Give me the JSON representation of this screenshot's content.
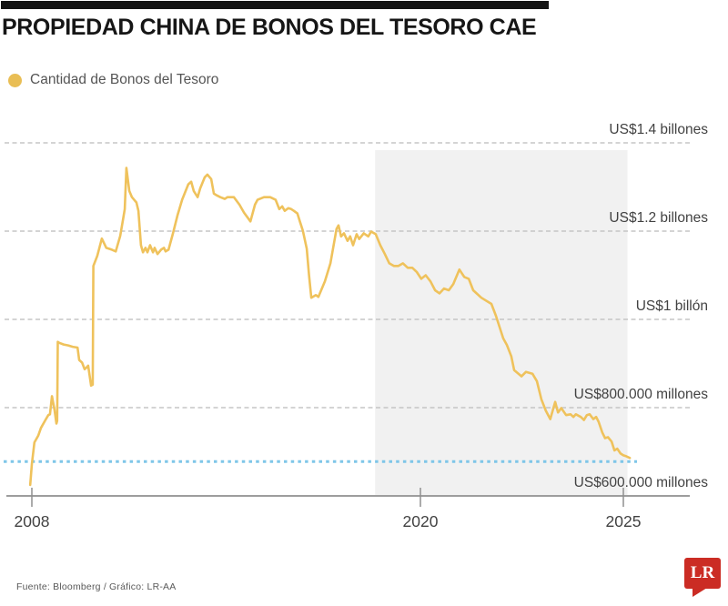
{
  "header": {
    "title": "PROPIEDAD CHINA DE BONOS DEL TESORO CAE"
  },
  "legend": {
    "label": "Cantidad de Bonos del Tesoro"
  },
  "footer": {
    "source": "Fuente: Bloomberg / Gráfico: LR-AA",
    "logo_text": "LR"
  },
  "colors": {
    "series_yellow": "#EFC25C",
    "legend_dot": "#E9BE55",
    "reference_blue": "#7EC6E8",
    "highlight_band": "#F1F1F1",
    "grid_gray": "#C6C6C6",
    "axis_gray": "#9D9D9D",
    "tick_gray": "#8F8F8F",
    "logo_red": "#CB2C24",
    "top_bar_black": "#141414"
  },
  "chart_data": {
    "type": "line",
    "title": "PROPIEDAD CHINA DE BONOS DEL TESORO CAE",
    "values_unit": "miles de millones de US$ (1400 = US$1.4 billones)",
    "xlim": [
      2007.9,
      2025.3
    ],
    "ylim": [
      600,
      1430
    ],
    "grid": "horizontal-dashed",
    "legend_position": "top-left",
    "x_ticks": [
      {
        "year": 2008,
        "label": "2008"
      },
      {
        "year": 2020,
        "label": "2020"
      },
      {
        "year": 2025,
        "label": "2025"
      }
    ],
    "y_ticks": [
      {
        "value": 1400,
        "label": "US$1.4 billones"
      },
      {
        "value": 1200,
        "label": "US$1.2 billones"
      },
      {
        "value": 1000,
        "label": "US$1 billón"
      },
      {
        "value": 800,
        "label": "US$800.000 millones"
      },
      {
        "value": 600,
        "label": "US$600.000 millones"
      }
    ],
    "highlight_band": {
      "from_year": 2018.6,
      "to_year": 2025.1
    },
    "reference_line": {
      "value": 678,
      "style": "dashed"
    },
    "series": [
      {
        "name": "Cantidad de Bonos del Tesoro",
        "points": [
          [
            2007.95,
            625
          ],
          [
            2008.0,
            672
          ],
          [
            2008.08,
            721
          ],
          [
            2008.2,
            737
          ],
          [
            2008.28,
            754
          ],
          [
            2008.42,
            772
          ],
          [
            2008.51,
            783
          ],
          [
            2008.56,
            785
          ],
          [
            2008.62,
            826
          ],
          [
            2008.7,
            795
          ],
          [
            2008.76,
            764
          ],
          [
            2008.78,
            770
          ],
          [
            2008.8,
            949
          ],
          [
            2008.84,
            947
          ],
          [
            2008.98,
            943
          ],
          [
            2009.12,
            941
          ],
          [
            2009.26,
            938
          ],
          [
            2009.41,
            936
          ],
          [
            2009.46,
            908
          ],
          [
            2009.55,
            902
          ],
          [
            2009.63,
            887
          ],
          [
            2009.69,
            891
          ],
          [
            2009.74,
            895
          ],
          [
            2009.83,
            850
          ],
          [
            2009.88,
            852
          ],
          [
            2009.9,
            1121
          ],
          [
            2010.02,
            1144
          ],
          [
            2010.16,
            1183
          ],
          [
            2010.3,
            1162
          ],
          [
            2010.47,
            1158
          ],
          [
            2010.59,
            1154
          ],
          [
            2010.73,
            1189
          ],
          [
            2010.81,
            1224
          ],
          [
            2010.87,
            1250
          ],
          [
            2010.92,
            1343
          ],
          [
            2011.01,
            1291
          ],
          [
            2011.09,
            1277
          ],
          [
            2011.23,
            1265
          ],
          [
            2011.29,
            1246
          ],
          [
            2011.37,
            1168
          ],
          [
            2011.43,
            1152
          ],
          [
            2011.51,
            1162
          ],
          [
            2011.57,
            1152
          ],
          [
            2011.65,
            1168
          ],
          [
            2011.74,
            1152
          ],
          [
            2011.79,
            1162
          ],
          [
            2011.88,
            1148
          ],
          [
            2011.99,
            1158
          ],
          [
            2012.08,
            1162
          ],
          [
            2012.13,
            1154
          ],
          [
            2012.22,
            1158
          ],
          [
            2012.36,
            1195
          ],
          [
            2012.5,
            1236
          ],
          [
            2012.64,
            1271
          ],
          [
            2012.83,
            1306
          ],
          [
            2012.92,
            1312
          ],
          [
            2013.0,
            1291
          ],
          [
            2013.12,
            1277
          ],
          [
            2013.2,
            1297
          ],
          [
            2013.34,
            1322
          ],
          [
            2013.42,
            1328
          ],
          [
            2013.54,
            1318
          ],
          [
            2013.62,
            1285
          ],
          [
            2013.71,
            1281
          ],
          [
            2013.82,
            1277
          ],
          [
            2013.96,
            1273
          ],
          [
            2014.04,
            1277
          ],
          [
            2014.24,
            1277
          ],
          [
            2014.41,
            1260
          ],
          [
            2014.55,
            1242
          ],
          [
            2014.75,
            1222
          ],
          [
            2014.89,
            1260
          ],
          [
            2014.97,
            1271
          ],
          [
            2015.17,
            1277
          ],
          [
            2015.36,
            1277
          ],
          [
            2015.53,
            1271
          ],
          [
            2015.64,
            1250
          ],
          [
            2015.73,
            1256
          ],
          [
            2015.81,
            1246
          ],
          [
            2015.92,
            1252
          ],
          [
            2016.01,
            1250
          ],
          [
            2016.09,
            1246
          ],
          [
            2016.2,
            1240
          ],
          [
            2016.29,
            1219
          ],
          [
            2016.37,
            1201
          ],
          [
            2016.49,
            1160
          ],
          [
            2016.56,
            1100
          ],
          [
            2016.63,
            1049
          ],
          [
            2016.77,
            1055
          ],
          [
            2016.85,
            1051
          ],
          [
            2017.05,
            1086
          ],
          [
            2017.22,
            1127
          ],
          [
            2017.41,
            1205
          ],
          [
            2017.47,
            1213
          ],
          [
            2017.55,
            1188
          ],
          [
            2017.64,
            1195
          ],
          [
            2017.75,
            1178
          ],
          [
            2017.83,
            1188
          ],
          [
            2017.92,
            1168
          ],
          [
            2018.03,
            1193
          ],
          [
            2018.11,
            1182
          ],
          [
            2018.25,
            1195
          ],
          [
            2018.39,
            1188
          ],
          [
            2018.48,
            1199
          ],
          [
            2018.62,
            1193
          ],
          [
            2018.76,
            1168
          ],
          [
            2018.9,
            1148
          ],
          [
            2019.04,
            1127
          ],
          [
            2019.18,
            1121
          ],
          [
            2019.32,
            1121
          ],
          [
            2019.46,
            1127
          ],
          [
            2019.61,
            1117
          ],
          [
            2019.75,
            1117
          ],
          [
            2019.89,
            1107
          ],
          [
            2020.02,
            1092
          ],
          [
            2020.13,
            1100
          ],
          [
            2020.25,
            1086
          ],
          [
            2020.36,
            1066
          ],
          [
            2020.47,
            1059
          ],
          [
            2020.58,
            1070
          ],
          [
            2020.7,
            1066
          ],
          [
            2020.81,
            1080
          ],
          [
            2020.96,
            1113
          ],
          [
            2021.08,
            1096
          ],
          [
            2021.19,
            1092
          ],
          [
            2021.3,
            1066
          ],
          [
            2021.5,
            1049
          ],
          [
            2021.75,
            1035
          ],
          [
            2021.86,
            1008
          ],
          [
            2022.04,
            957
          ],
          [
            2022.13,
            942
          ],
          [
            2022.24,
            916
          ],
          [
            2022.31,
            885
          ],
          [
            2022.49,
            871
          ],
          [
            2022.6,
            881
          ],
          [
            2022.76,
            877
          ],
          [
            2022.87,
            860
          ],
          [
            2022.98,
            819
          ],
          [
            2023.09,
            793
          ],
          [
            2023.2,
            774
          ],
          [
            2023.32,
            813
          ],
          [
            2023.39,
            789
          ],
          [
            2023.47,
            799
          ],
          [
            2023.59,
            783
          ],
          [
            2023.7,
            785
          ],
          [
            2023.77,
            779
          ],
          [
            2023.83,
            785
          ],
          [
            2023.95,
            779
          ],
          [
            2024.03,
            772
          ],
          [
            2024.1,
            783
          ],
          [
            2024.17,
            785
          ],
          [
            2024.26,
            774
          ],
          [
            2024.33,
            779
          ],
          [
            2024.39,
            768
          ],
          [
            2024.48,
            744
          ],
          [
            2024.55,
            731
          ],
          [
            2024.62,
            733
          ],
          [
            2024.71,
            723
          ],
          [
            2024.78,
            703
          ],
          [
            2024.85,
            707
          ],
          [
            2024.93,
            696
          ],
          [
            2025.0,
            692
          ],
          [
            2025.07,
            690
          ],
          [
            2025.16,
            686
          ]
        ]
      }
    ]
  }
}
